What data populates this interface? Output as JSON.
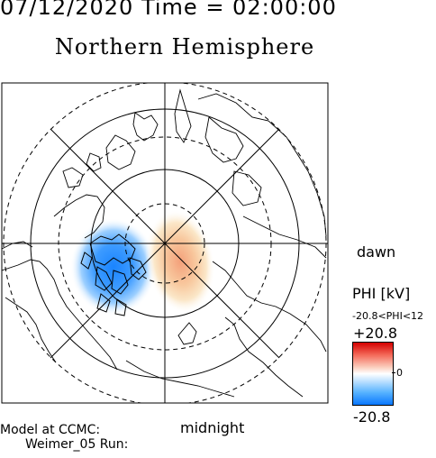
{
  "header": {
    "date_time": "07/12/2020 Time = 02:00:00"
  },
  "title": "Northern Hemisphere",
  "orientation": {
    "dawn": "dawn",
    "midnight": "midnight"
  },
  "colorbar": {
    "label": "PHI [kV]",
    "range_text": "-20.8<PHI<12",
    "max_label": "+20.8",
    "zero_label": "0",
    "min_label": "-20.8",
    "colors": {
      "max": "#d40000",
      "mid": "#ffffff",
      "min": "#0a78ff"
    }
  },
  "footer": {
    "model_line1": "Model at CCMC:",
    "model_line2": "Weimer_05 Run:"
  },
  "map": {
    "projection": "polar-stereographic-north",
    "grid_lines": true,
    "potential_cells": [
      {
        "sign": "negative",
        "side": "dusk"
      },
      {
        "sign": "positive",
        "side": "dawn"
      }
    ]
  }
}
